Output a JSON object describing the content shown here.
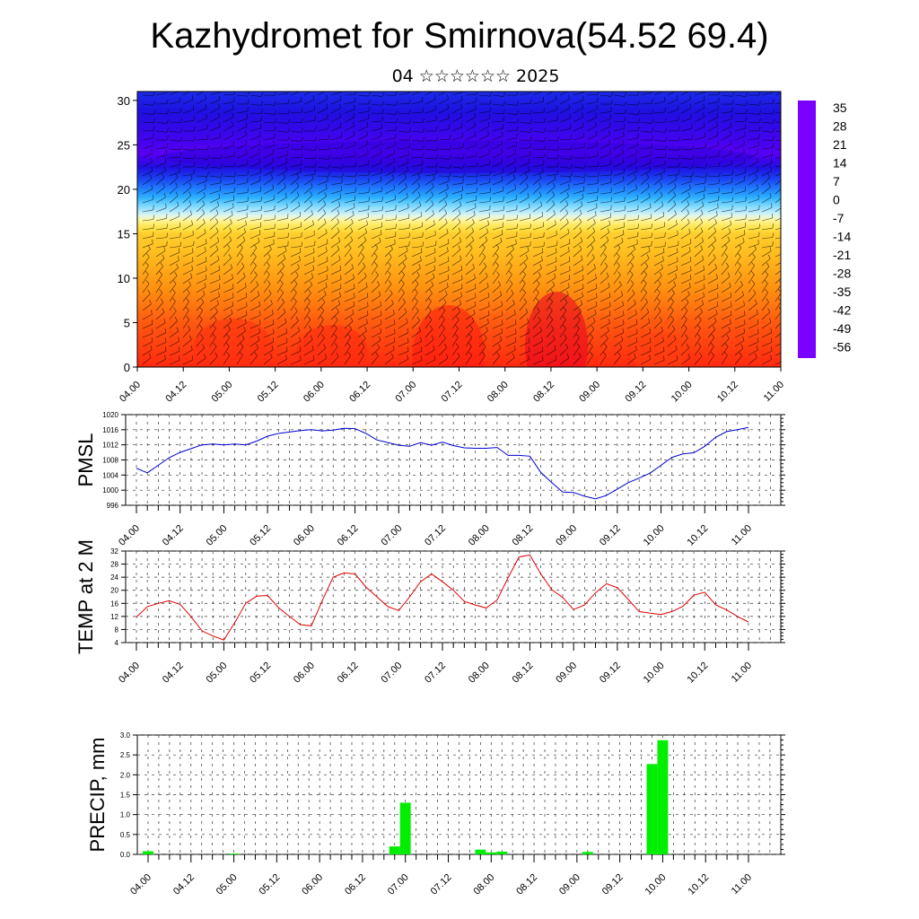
{
  "title": "Kazhydromet for Smirnova(54.52 69.4)",
  "subtitle": "04 ☆☆☆☆☆☆ 2025",
  "time_labels": [
    "04.00",
    "04.12",
    "05.00",
    "05.12",
    "06.00",
    "06.12",
    "07.00",
    "07.12",
    "08.00",
    "08.12",
    "09.00",
    "09.12",
    "10.00",
    "10.12",
    "11.00"
  ],
  "colors": {
    "pmsl_line": "#0000d0",
    "temp_line": "#e00000",
    "precip_bar": "#00ee00",
    "grid": "#333333"
  },
  "chart_data": [
    {
      "type": "heatmap",
      "title": "",
      "xlabel": "",
      "ylabel": "",
      "ylim": [
        0,
        31
      ],
      "yticks": [
        0,
        5,
        10,
        15,
        20,
        25,
        30
      ],
      "x_tick_labels": [
        "04.00",
        "04.12",
        "05.00",
        "05.12",
        "06.00",
        "06.12",
        "07.00",
        "07.12",
        "08.00",
        "08.12",
        "09.00",
        "09.12",
        "10.00",
        "10.12",
        "11.00"
      ],
      "colorbar": {
        "labels": [
          "35",
          "28",
          "21",
          "14",
          "7",
          "0",
          "-7",
          "-14",
          "-21",
          "-28",
          "-35",
          "-42",
          "-49",
          "-56"
        ],
        "min": -63,
        "max": 42
      },
      "overlay": "wind barbs",
      "approx_temperature_profile": [
        [
          0,
          26
        ],
        [
          5,
          20
        ],
        [
          10,
          12
        ],
        [
          15,
          4
        ],
        [
          17,
          -12
        ],
        [
          20,
          -35
        ],
        [
          24,
          -58
        ],
        [
          27,
          -52
        ],
        [
          31,
          -45
        ]
      ]
    },
    {
      "type": "line",
      "ylabel": "PMSL",
      "ylim": [
        996,
        1020
      ],
      "yticks": [
        996,
        1000,
        1004,
        1008,
        1012,
        1016,
        1020
      ],
      "x_tick_labels": [
        "04.00",
        "04.12",
        "05.00",
        "05.12",
        "06.00",
        "06.12",
        "07.00",
        "07.12",
        "08.00",
        "08.12",
        "09.00",
        "09.12",
        "10.00",
        "10.12",
        "11.00"
      ],
      "series": [
        {
          "x": [
            0,
            3,
            6,
            9,
            12,
            15,
            18,
            21,
            24,
            27,
            30,
            33,
            36,
            39,
            42,
            45,
            48,
            51,
            54,
            57,
            60,
            63,
            66,
            69,
            72,
            75,
            78,
            81,
            84,
            87,
            90,
            93,
            96,
            99,
            102,
            105,
            108,
            111,
            114,
            117,
            120,
            123,
            126,
            129,
            132,
            135,
            138,
            141,
            144,
            147,
            150,
            153,
            156,
            159,
            162,
            165,
            168
          ],
          "values": [
            1005.8,
            1004.6,
            1006.6,
            1008.6,
            1010,
            1011,
            1012,
            1012.2,
            1012,
            1012.2,
            1012,
            1013,
            1014.3,
            1015,
            1015.4,
            1015.8,
            1016,
            1015.7,
            1015.9,
            1016.4,
            1016.3,
            1015,
            1013.3,
            1012.6,
            1011.9,
            1011.6,
            1012.6,
            1011.9,
            1012.7,
            1011.8,
            1011.2,
            1011.1,
            1011.1,
            1011.3,
            1009.2,
            1009.2,
            1009,
            1004.7,
            1002,
            999.5,
            999.4,
            998.4,
            997.7,
            998.6,
            1000.3,
            1002,
            1003.2,
            1004.5,
            1006.6,
            1008.7,
            1009.6,
            1009.9,
            1011.6,
            1014,
            1015.5,
            1016,
            1016.6
          ]
        }
      ]
    },
    {
      "type": "line",
      "ylabel": "TEMP at 2 M",
      "ylim": [
        4,
        32
      ],
      "yticks": [
        4,
        8,
        12,
        16,
        20,
        24,
        28,
        32
      ],
      "x_tick_labels": [
        "04.00",
        "04.12",
        "05.00",
        "05.12",
        "06.00",
        "06.12",
        "07.00",
        "07.12",
        "08.00",
        "08.12",
        "09.00",
        "09.12",
        "10.00",
        "10.12",
        "11.00"
      ],
      "series": [
        {
          "x": [
            0,
            3,
            6,
            9,
            12,
            15,
            18,
            21,
            24,
            27,
            30,
            33,
            36,
            39,
            42,
            45,
            48,
            51,
            54,
            57,
            60,
            63,
            66,
            69,
            72,
            75,
            78,
            81,
            84,
            87,
            90,
            93,
            96,
            99,
            102,
            105,
            108,
            111,
            114,
            117,
            120,
            123,
            126,
            129,
            132,
            135,
            138,
            141,
            144,
            147,
            150,
            153,
            156,
            159,
            162,
            165,
            168
          ],
          "values": [
            11.8,
            15,
            16,
            16.8,
            15.7,
            11.9,
            7.6,
            6,
            4.8,
            10.1,
            16,
            18.2,
            18.4,
            14.7,
            12,
            9.5,
            9.1,
            16.8,
            24,
            25.3,
            25,
            21,
            18,
            15,
            13.8,
            18,
            22.6,
            25,
            22.6,
            20,
            16.6,
            15.5,
            14.6,
            17,
            23.8,
            30.2,
            30.8,
            25,
            20.2,
            17.8,
            14.1,
            15.5,
            19.2,
            22,
            20.8,
            17.2,
            13.5,
            13,
            12.6,
            13.5,
            15.1,
            18.5,
            19.4,
            15.5,
            14,
            12,
            10.3
          ]
        }
      ]
    },
    {
      "type": "bar",
      "ylabel": "PRECIP, mm",
      "ylim": [
        0,
        3.0
      ],
      "yticks": [
        0.0,
        0.5,
        1.0,
        1.5,
        2.0,
        2.5,
        3.0
      ],
      "ytick_labels": [
        "0.0",
        "0.5",
        "1.0",
        "1.5",
        "2.0",
        "2.5",
        "3.0"
      ],
      "x_tick_labels": [
        "04.00",
        "04.12",
        "05.00",
        "05.12",
        "06.00",
        "06.12",
        "07.00",
        "07.12",
        "08.00",
        "08.12",
        "09.00",
        "09.12",
        "10.00",
        "10.12",
        "11.00"
      ],
      "series": [
        {
          "x": [
            0,
            24,
            69,
            72,
            93,
            96,
            99,
            123,
            141,
            144
          ],
          "values": [
            0.08,
            0.02,
            0.2,
            1.3,
            0.12,
            0.05,
            0.07,
            0.06,
            2.27,
            2.87
          ]
        }
      ]
    }
  ]
}
